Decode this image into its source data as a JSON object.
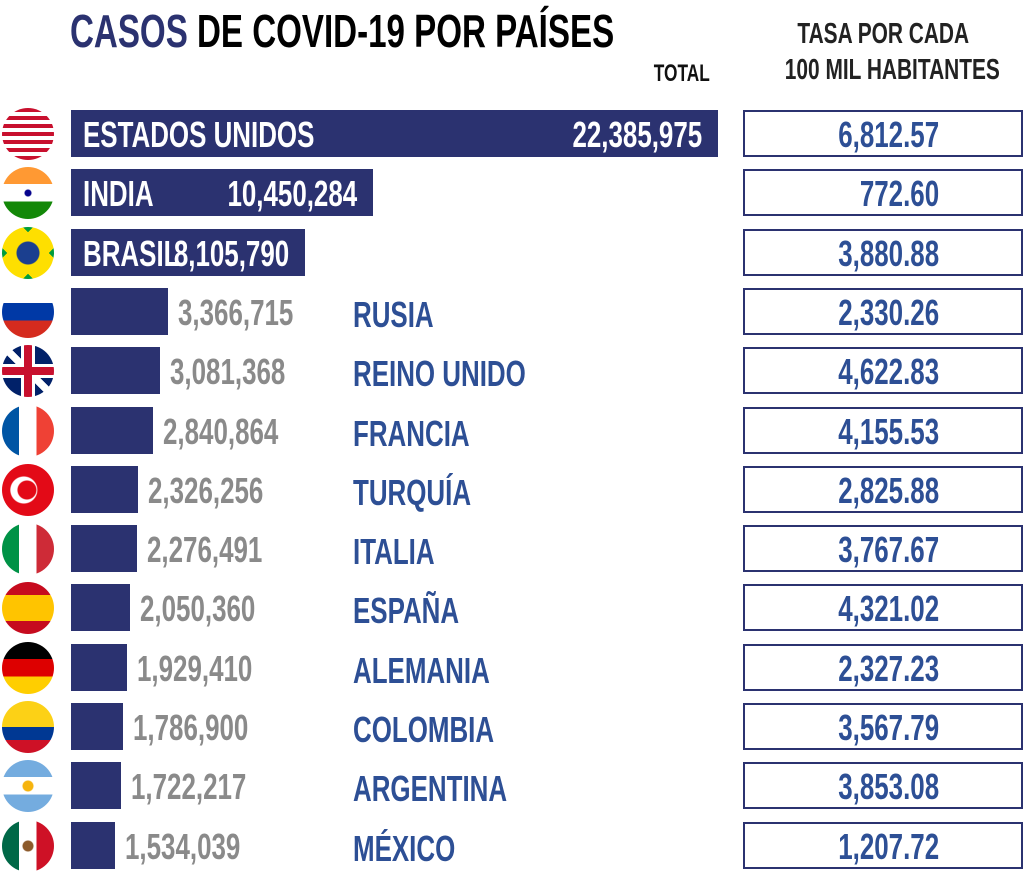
{
  "chart_data": {
    "type": "bar",
    "title_accent": "CASOS",
    "title_rest": "DE COVID-19 POR PAÍSES",
    "total_header": "TOTAL",
    "rate_header_line1": "TASA POR CADA",
    "rate_header_line2": "100 MIL HABITANTES",
    "bar_color": "#2b3270",
    "rate_color": "#2d4f95",
    "categories": [
      "ESTADOS UNIDOS",
      "INDIA",
      "BRASIL",
      "RUSIA",
      "REINO UNIDO",
      "FRANCIA",
      "TURQUÍA",
      "ITALIA",
      "ESPAÑA",
      "ALEMANIA",
      "COLOMBIA",
      "ARGENTINA",
      "MÉXICO"
    ],
    "values": [
      22385975,
      10450284,
      8105790,
      3366715,
      3081368,
      2840864,
      2326256,
      2276491,
      2050360,
      1929410,
      1786900,
      1722217,
      1534039
    ],
    "value_labels": [
      "22,385,975",
      "10,450,284",
      "8,105,790",
      "3,366,715",
      "3,081,368",
      "2,840,864",
      "2,326,256",
      "2,276,491",
      "2,050,360",
      "1,929,410",
      "1,786,900",
      "1,722,217",
      "1,534,039"
    ],
    "rates": [
      6812.57,
      772.6,
      3880.88,
      2330.26,
      4622.83,
      4155.53,
      2825.88,
      3767.67,
      4321.02,
      2327.23,
      3567.79,
      3853.08,
      1207.72
    ],
    "rate_labels": [
      "6,812.57",
      "772.60",
      "3,880.88",
      "2,330.26",
      "4,622.83",
      "4,155.53",
      "2,825.88",
      "3,767.67",
      "4,321.02",
      "2,327.23",
      "3,567.79",
      "3,853.08",
      "1,207.72"
    ],
    "flag_icons": [
      "us-flag-icon",
      "india-flag-icon",
      "brazil-flag-icon",
      "russia-flag-icon",
      "uk-flag-icon",
      "france-flag-icon",
      "turkey-flag-icon",
      "italy-flag-icon",
      "spain-flag-icon",
      "germany-flag-icon",
      "colombia-flag-icon",
      "argentina-flag-icon",
      "mexico-flag-icon"
    ]
  }
}
